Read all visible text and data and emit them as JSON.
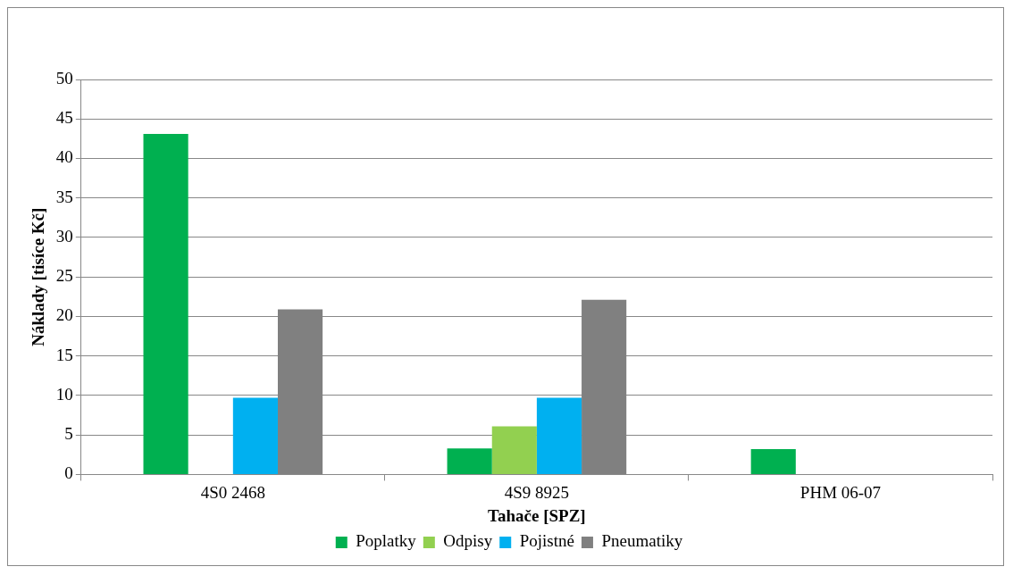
{
  "chart_data": {
    "type": "bar",
    "xlabel": "Tahače [SPZ]",
    "ylabel": "Náklady [tisíce Kč]",
    "categories": [
      "4S0 2468",
      "4S9 8925",
      "PHM 06-07"
    ],
    "series": [
      {
        "name": "Poplatky",
        "color": "#00b050",
        "values": [
          43.1,
          3.3,
          3.2
        ]
      },
      {
        "name": "Odpisy",
        "color": "#92d050",
        "values": [
          0,
          6.1,
          0
        ]
      },
      {
        "name": "Pojistné",
        "color": "#00b0f0",
        "values": [
          9.7,
          9.7,
          0
        ]
      },
      {
        "name": "Pneumatiky",
        "color": "#808080",
        "values": [
          20.9,
          22.1,
          0
        ]
      }
    ],
    "ylim": [
      0,
      50
    ],
    "yticks": [
      0,
      5,
      10,
      15,
      20,
      25,
      30,
      35,
      40,
      45,
      50
    ],
    "grid": "y",
    "legend": "bottom"
  }
}
